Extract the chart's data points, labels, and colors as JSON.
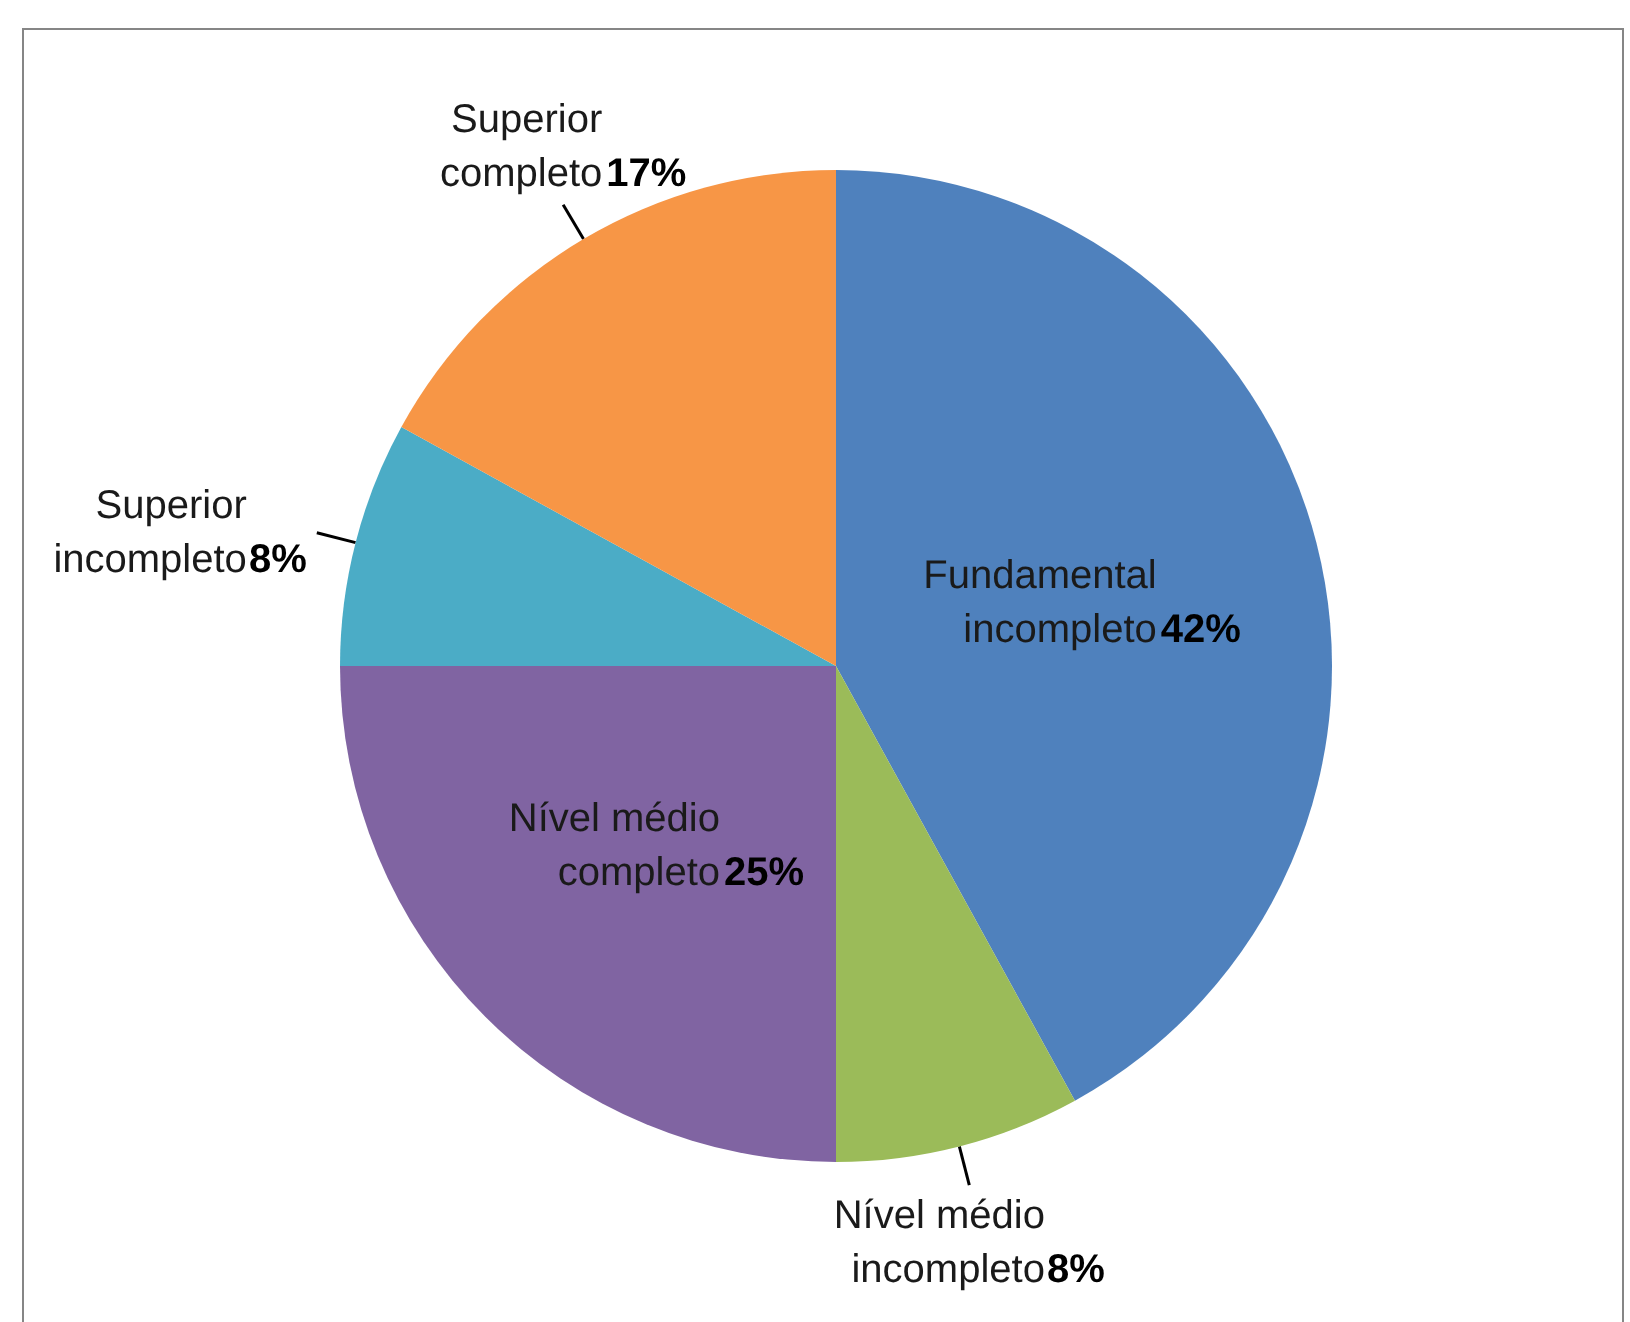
{
  "chart_data": {
    "type": "pie",
    "categories": [
      "Fundamental incompleto",
      "Nível médio incompleto",
      "Nível médio completo",
      "Superior incompleto",
      "Superior completo"
    ],
    "values": [
      42,
      8,
      25,
      8,
      17
    ],
    "value_labels": [
      "42%",
      "8%",
      "25%",
      "8%",
      "17%"
    ],
    "colors": [
      "#4f81bd",
      "#9bbb59",
      "#8064a2",
      "#4bacc6",
      "#f79646"
    ]
  }
}
